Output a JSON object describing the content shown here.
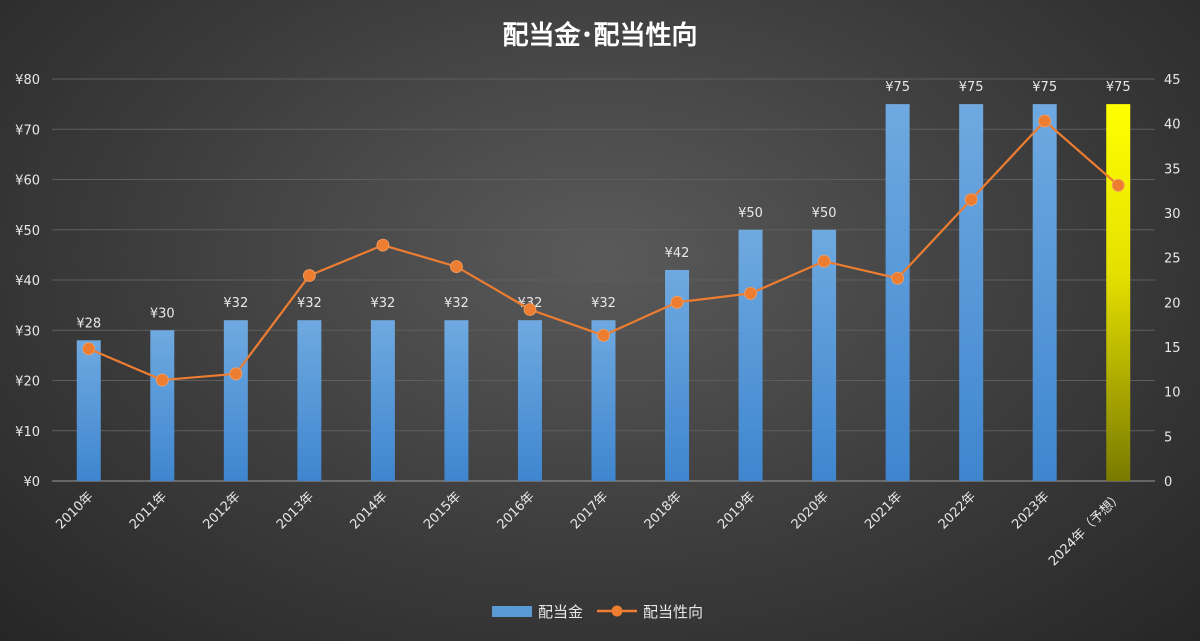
{
  "chart_data": {
    "type": "bar",
    "title": "配当金･配当性向",
    "categories": [
      "2010年",
      "2011年",
      "2012年",
      "2013年",
      "2014年",
      "2015年",
      "2016年",
      "2017年",
      "2018年",
      "2019年",
      "2020年",
      "2021年",
      "2022年",
      "2023年",
      "2024年（予想）"
    ],
    "series": [
      {
        "name": "配当金",
        "type": "bar",
        "axis": "left",
        "values": [
          28,
          30,
          32,
          32,
          32,
          32,
          32,
          32,
          42,
          50,
          50,
          75,
          75,
          75,
          75
        ],
        "data_labels": [
          "¥28",
          "¥30",
          "¥32",
          "¥32",
          "¥32",
          "¥32",
          "¥32",
          "¥32",
          "¥42",
          "¥50",
          "¥50",
          "¥75",
          "¥75",
          "¥75",
          "¥75"
        ],
        "color": "#5b9bd5",
        "highlight_color": "#ffff00",
        "highlight_index": 14
      },
      {
        "name": "配当性向",
        "type": "line",
        "axis": "right",
        "values": [
          14.8,
          11.3,
          12.0,
          23.0,
          26.4,
          24.0,
          19.2,
          16.3,
          20.0,
          21.0,
          24.6,
          22.7,
          31.5,
          40.3,
          33.1
        ],
        "color": "#ed7d31"
      }
    ],
    "left_axis": {
      "ylim": [
        0,
        80
      ],
      "ticks": [
        "¥0",
        "¥10",
        "¥20",
        "¥30",
        "¥40",
        "¥50",
        "¥60",
        "¥70",
        "¥80"
      ]
    },
    "right_axis": {
      "ylim": [
        0,
        45
      ],
      "ticks": [
        "0",
        "5",
        "10",
        "15",
        "20",
        "25",
        "30",
        "35",
        "40",
        "45"
      ]
    },
    "grid": true,
    "legend": "bottom"
  }
}
